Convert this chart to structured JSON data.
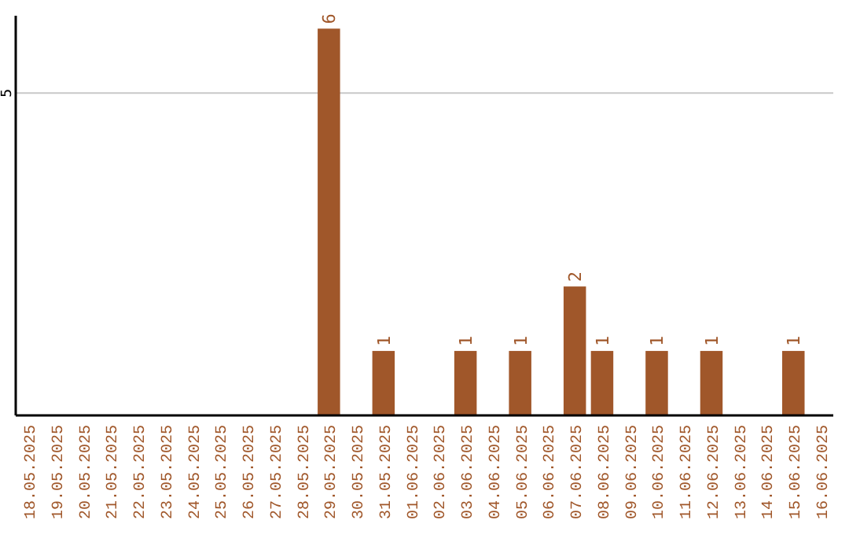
{
  "chart_data": {
    "type": "bar",
    "categories": [
      "18.05.2025",
      "19.05.2025",
      "20.05.2025",
      "21.05.2025",
      "22.05.2025",
      "23.05.2025",
      "24.05.2025",
      "25.05.2025",
      "26.05.2025",
      "27.05.2025",
      "28.05.2025",
      "29.05.2025",
      "30.05.2025",
      "31.05.2025",
      "01.06.2025",
      "02.06.2025",
      "03.06.2025",
      "04.06.2025",
      "05.06.2025",
      "06.06.2025",
      "07.06.2025",
      "08.06.2025",
      "09.06.2025",
      "10.06.2025",
      "11.06.2025",
      "12.06.2025",
      "13.06.2025",
      "14.06.2025",
      "15.06.2025",
      "16.06.2025"
    ],
    "values": [
      0,
      0,
      0,
      0,
      0,
      0,
      0,
      0,
      0,
      0,
      0,
      6,
      0,
      1,
      0,
      0,
      1,
      0,
      1,
      0,
      2,
      1,
      0,
      1,
      0,
      1,
      0,
      0,
      1,
      0
    ],
    "value_labels": [
      null,
      null,
      null,
      null,
      null,
      null,
      null,
      null,
      null,
      null,
      null,
      "6",
      null,
      "1",
      null,
      null,
      "1",
      null,
      "1",
      null,
      "2",
      "1",
      null,
      "1",
      null,
      "1",
      null,
      null,
      "1",
      null
    ],
    "color": "#a0572a",
    "ylim": [
      0,
      6.2
    ],
    "yticks": [
      5
    ],
    "grid": "y"
  }
}
